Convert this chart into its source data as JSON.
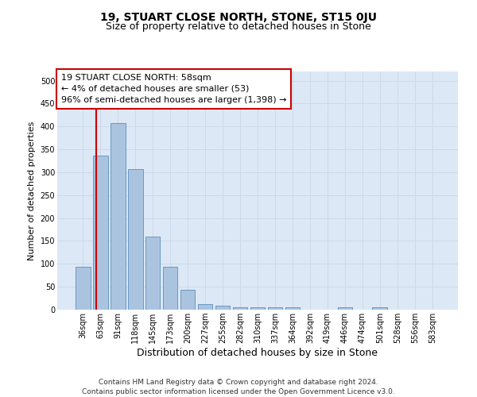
{
  "title": "19, STUART CLOSE NORTH, STONE, ST15 0JU",
  "subtitle": "Size of property relative to detached houses in Stone",
  "xlabel": "Distribution of detached houses by size in Stone",
  "ylabel": "Number of detached properties",
  "bar_values": [
    93,
    337,
    408,
    307,
    160,
    93,
    43,
    13,
    9,
    6,
    5,
    5,
    5,
    0,
    0,
    5,
    0,
    5,
    0,
    0,
    0
  ],
  "bar_labels": [
    "36sqm",
    "63sqm",
    "91sqm",
    "118sqm",
    "145sqm",
    "173sqm",
    "200sqm",
    "227sqm",
    "255sqm",
    "282sqm",
    "310sqm",
    "337sqm",
    "364sqm",
    "392sqm",
    "419sqm",
    "446sqm",
    "474sqm",
    "501sqm",
    "528sqm",
    "556sqm",
    "583sqm"
  ],
  "bar_color": "#aac4e0",
  "bar_edge_color": "#5a8fc0",
  "ylim": [
    0,
    520
  ],
  "yticks": [
    0,
    50,
    100,
    150,
    200,
    250,
    300,
    350,
    400,
    450,
    500
  ],
  "property_sqm": 58,
  "vline_x": 0.78,
  "annotation_text": "19 STUART CLOSE NORTH: 58sqm\n← 4% of detached houses are smaller (53)\n96% of semi-detached houses are larger (1,398) →",
  "annotation_box_color": "#ffffff",
  "annotation_box_edge_color": "#cc0000",
  "vline_color": "#cc0000",
  "grid_color": "#ccd9e8",
  "background_color": "#dce8f5",
  "footer_line1": "Contains HM Land Registry data © Crown copyright and database right 2024.",
  "footer_line2": "Contains public sector information licensed under the Open Government Licence v3.0.",
  "title_fontsize": 10,
  "subtitle_fontsize": 9,
  "xlabel_fontsize": 9,
  "ylabel_fontsize": 8,
  "tick_fontsize": 7,
  "annotation_fontsize": 8,
  "footer_fontsize": 6.5
}
